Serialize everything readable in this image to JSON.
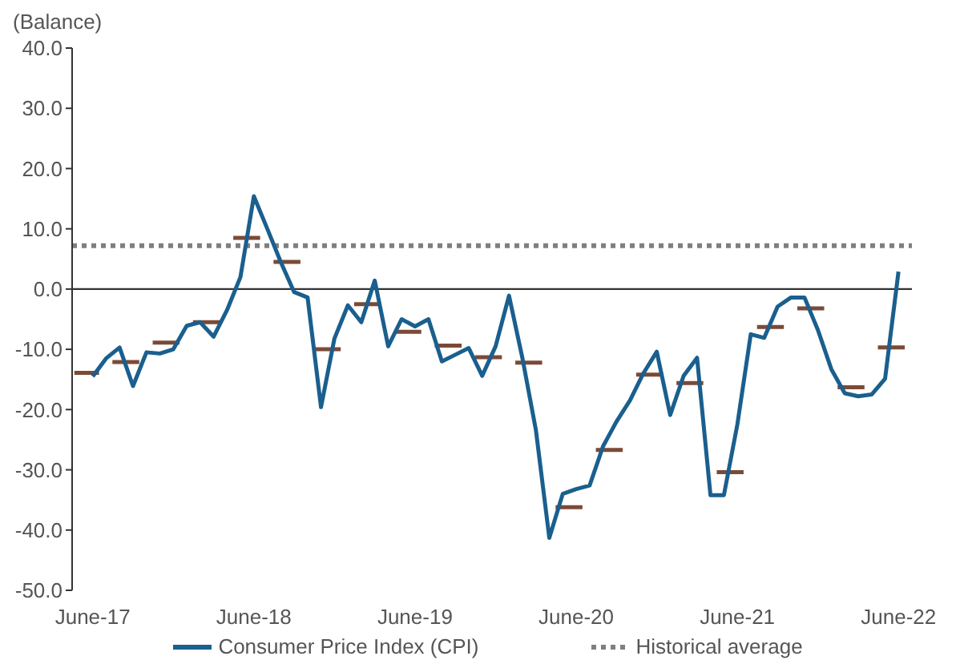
{
  "chart_data": {
    "type": "line",
    "ylabel": "(Balance)",
    "x": [
      "2017-06",
      "2017-07",
      "2017-08",
      "2017-09",
      "2017-10",
      "2017-11",
      "2017-12",
      "2018-01",
      "2018-02",
      "2018-03",
      "2018-04",
      "2018-05",
      "2018-06",
      "2018-07",
      "2018-08",
      "2018-09",
      "2018-10",
      "2018-11",
      "2018-12",
      "2019-01",
      "2019-02",
      "2019-03",
      "2019-04",
      "2019-05",
      "2019-06",
      "2019-07",
      "2019-08",
      "2019-09",
      "2019-10",
      "2019-11",
      "2019-12",
      "2020-01",
      "2020-02",
      "2020-03",
      "2020-04",
      "2020-05",
      "2020-06",
      "2020-07",
      "2020-08",
      "2020-09",
      "2020-10",
      "2020-11",
      "2020-12",
      "2021-01",
      "2021-02",
      "2021-03",
      "2021-04",
      "2021-05",
      "2021-06",
      "2021-07",
      "2021-08",
      "2021-09",
      "2021-10",
      "2021-11",
      "2021-12",
      "2022-01",
      "2022-02",
      "2022-03",
      "2022-04",
      "2022-05",
      "2022-06"
    ],
    "series": [
      {
        "name": "Consumer Price Index (CPI)",
        "type": "line",
        "color": "#1a5f8e",
        "values": [
          -14.5,
          -11.5,
          -9.7,
          -16.1,
          -10.5,
          -10.7,
          -10.0,
          -6.1,
          -5.5,
          -7.9,
          -3.5,
          2.0,
          15.4,
          10.0,
          4.5,
          -0.5,
          -1.4,
          -19.6,
          -8.2,
          -2.7,
          -5.5,
          1.4,
          -9.5,
          -5.0,
          -6.2,
          -5.0,
          -12.0,
          -10.9,
          -9.8,
          -14.4,
          -9.5,
          -1.1,
          -11.5,
          -23.4,
          -41.3,
          -34.0,
          -33.2,
          -32.6,
          -26.1,
          -22.0,
          -18.5,
          -14.0,
          -10.4,
          -20.9,
          -14.4,
          -11.4,
          -34.2,
          -34.2,
          -22.5,
          -7.5,
          -8.1,
          -2.9,
          -1.4,
          -1.4,
          -6.8,
          -13.3,
          -17.3,
          -17.8,
          -17.5,
          -14.9,
          2.9
        ]
      },
      {
        "type": "line",
        "color": "#7b4a36",
        "x": [
          "2017-04-20",
          "2017-06-15",
          "2017-07-01",
          "2017-07-15",
          "2017-09-15",
          "2017-10-01",
          "2017-10-15",
          "2017-12-15",
          "2018-01-01",
          "2018-01-15",
          "2018-03-15",
          "2018-04-01",
          "2018-04-15",
          "2018-06-15",
          "2018-07-01",
          "2018-07-15",
          "2018-09-15",
          "2018-10-01",
          "2018-10-15",
          "2018-12-15",
          "2019-01-01",
          "2019-01-15",
          "2019-03-15",
          "2019-04-01",
          "2019-04-15",
          "2019-06-15",
          "2019-07-01",
          "2019-07-15",
          "2019-09-15",
          "2019-10-01",
          "2019-10-15",
          "2019-12-15",
          "2020-01-01",
          "2020-01-15",
          "2020-03-15",
          "2020-04-01",
          "2020-04-15",
          "2020-06-15",
          "2020-07-01",
          "2020-07-15",
          "2020-09-15",
          "2020-10-01",
          "2020-10-15",
          "2020-12-15",
          "2021-01-01",
          "2021-01-15",
          "2021-03-15",
          "2021-04-01",
          "2021-04-15",
          "2021-06-15",
          "2021-07-01",
          "2021-07-15",
          "2021-09-15",
          "2021-10-01",
          "2021-10-15",
          "2021-12-15",
          "2022-01-01",
          "2022-01-15",
          "2022-03-15",
          "2022-04-01",
          "2022-04-15",
          "2022-06-15"
        ],
        "values": [
          -13.9,
          -13.9,
          null,
          -12.1,
          -12.1,
          null,
          -8.9,
          -8.9,
          null,
          -5.5,
          -5.5,
          null,
          8.5,
          8.5,
          null,
          4.5,
          4.5,
          null,
          -10.0,
          -10.0,
          null,
          -2.5,
          -2.5,
          null,
          -7.1,
          -7.1,
          null,
          -9.4,
          -9.4,
          null,
          -11.3,
          -11.3,
          null,
          -12.2,
          -12.2,
          null,
          -36.2,
          -36.2,
          null,
          -26.7,
          -26.7,
          null,
          -14.2,
          -14.2,
          null,
          -15.6,
          -15.6,
          null,
          -30.4,
          -30.4,
          null,
          -6.3,
          -6.3,
          null,
          -3.2,
          -3.2,
          null,
          -16.3,
          -16.3,
          null,
          -9.7,
          -9.7
        ]
      }
    ],
    "xlim": [
      "2017-04-15",
      "2022-07"
    ],
    "xticks": [
      {
        "value": "2017-06",
        "label": "June-17"
      },
      {
        "value": "2018-06",
        "label": "June-18"
      },
      {
        "value": "2019-06",
        "label": "June-19"
      },
      {
        "value": "2020-06",
        "label": "June-20"
      },
      {
        "value": "2021-06",
        "label": "June-21"
      },
      {
        "value": "2022-06",
        "label": "June-22"
      }
    ],
    "ylim": [
      -50,
      40
    ],
    "yticks": [
      {
        "value": 40,
        "label": "40.0"
      },
      {
        "value": 30,
        "label": "30.0"
      },
      {
        "value": 20,
        "label": "20.0"
      },
      {
        "value": 10,
        "label": "10.0"
      },
      {
        "value": 0,
        "label": "0.0"
      },
      {
        "value": -10,
        "label": "-10.0"
      },
      {
        "value": -20,
        "label": "-20.0"
      },
      {
        "value": -30,
        "label": "-30.0"
      },
      {
        "value": -40,
        "label": "-40.0"
      },
      {
        "value": -50,
        "label": "-50.0"
      }
    ],
    "ref_lines": [
      {
        "axis": "y",
        "value": 7.2,
        "label": "Historical average",
        "color": "#7f7f7f",
        "line_style": "dotted"
      },
      {
        "axis": "y",
        "value": 0,
        "color": "#333333",
        "line_style": "solid"
      }
    ],
    "grid": false,
    "legend": "bottom"
  }
}
